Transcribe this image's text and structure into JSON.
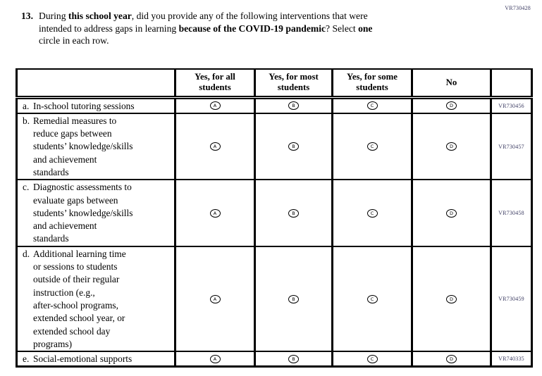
{
  "corner_code": "VR730428",
  "question": {
    "number": "13.",
    "lines": [
      {
        "s0": "During ",
        "s1": "this school year",
        "s2": ", did you provide any of the following interventions that were"
      },
      {
        "s0": "intended to address gaps in learning ",
        "s1": "because of the COVID-19 pandemic",
        "s2": "? Select ",
        "s3": "one"
      },
      {
        "s0": "circle in each row."
      }
    ]
  },
  "table": {
    "headers": [
      "Yes, for all\nstudents",
      "Yes, for most\nstudents",
      "Yes, for some\nstudents",
      "No"
    ],
    "option_letters": [
      "A",
      "B",
      "C",
      "D"
    ],
    "rows": [
      {
        "letter": "a.",
        "label": "In-school tutoring sessions",
        "code": "VR730456"
      },
      {
        "letter": "b.",
        "label": "Remedial measures to\nreduce gaps between\nstudents’ knowledge/skills\nand achievement\nstandards",
        "code": "VR730457"
      },
      {
        "letter": "c.",
        "label": "Diagnostic assessments to\nevaluate gaps between\nstudents’ knowledge/skills\nand achievement\nstandards",
        "code": "VR730458"
      },
      {
        "letter": "d.",
        "label": "Additional learning time\nor sessions to students\noutside of their regular\ninstruction (e.g.,\nafter-school programs,\nextended school year, or\nextended school day\nprograms)",
        "code": "VR730459"
      },
      {
        "letter": "e.",
        "label": "Social-emotional supports",
        "code": "VR740335"
      }
    ]
  }
}
